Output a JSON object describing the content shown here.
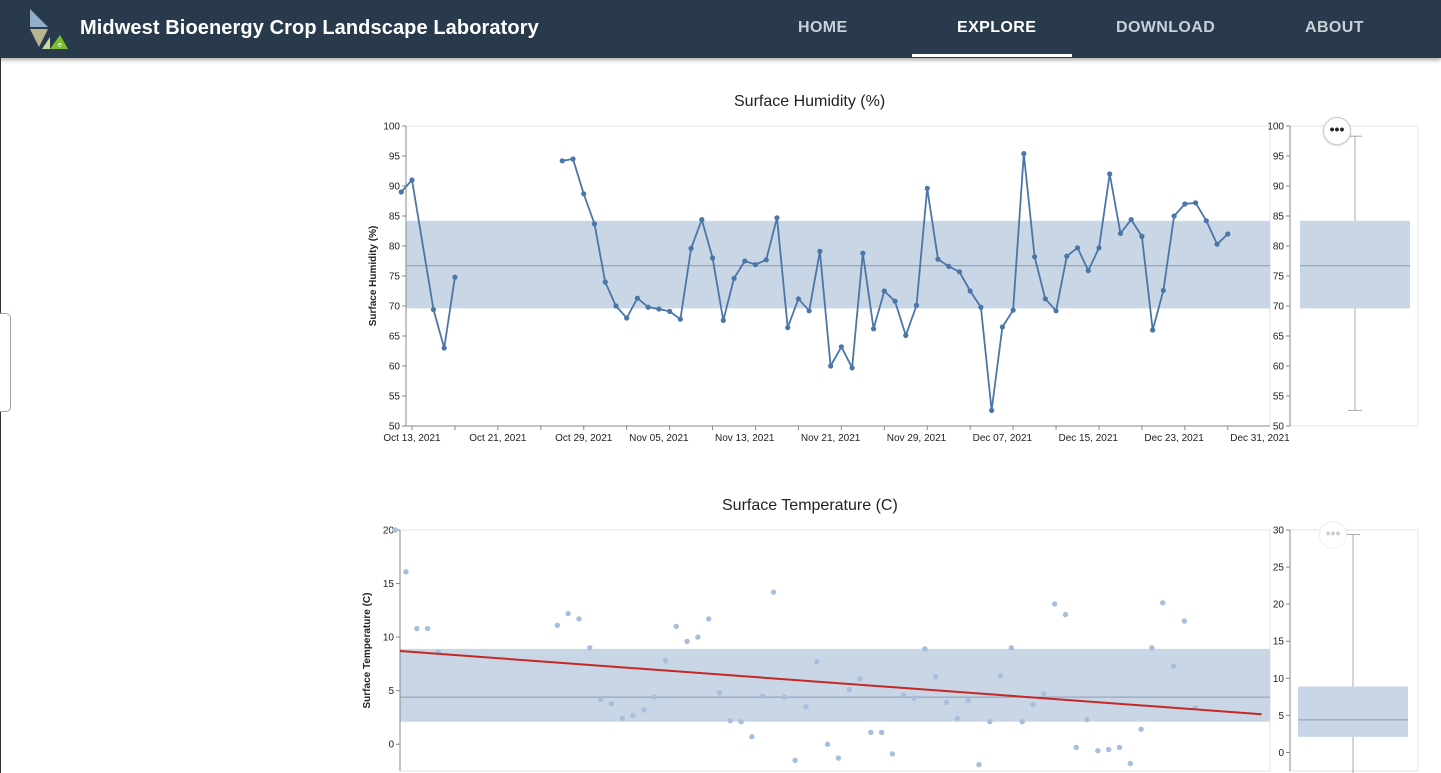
{
  "header": {
    "site_title": "Midwest Bioenergy Crop Landscape Laboratory",
    "logo_icon": "mbcll-leaf-logo-icon",
    "nav": [
      {
        "label": "HOME",
        "active": false
      },
      {
        "label": "EXPLORE",
        "active": true
      },
      {
        "label": "DOWNLOAD",
        "active": false
      },
      {
        "label": "ABOUT",
        "active": false
      }
    ]
  },
  "colors": {
    "header_bg": "#283a4b",
    "series": "#4a76a8",
    "band": "#c8d6e5",
    "median_line": "#8a9bb0",
    "trend": "#c62828"
  },
  "actions_icon": "ellipsis-icon",
  "actions_label": "•••",
  "chart_data": [
    {
      "type": "line",
      "title": "Surface Humidity (%)",
      "ylabel": "Surface Humidity (%)",
      "xlabel": "",
      "ylim": [
        50,
        100
      ],
      "xlim": [
        "2021-10-13",
        "2021-12-31"
      ],
      "yticks": [
        100,
        95,
        90,
        85,
        80,
        75,
        70,
        65,
        60,
        55,
        50
      ],
      "xticks": [
        "Oct 13, 2021",
        "Oct 21, 2021",
        "Oct 29, 2021",
        "Nov 05, 2021",
        "Nov 13, 2021",
        "Nov 21, 2021",
        "Nov 29, 2021",
        "Dec 07, 2021",
        "Dec 15, 2021",
        "Dec 23, 2021",
        "Dec 31, 2021"
      ],
      "grid": false,
      "band": {
        "low": 69.6,
        "high": 84.2
      },
      "median": 76.7,
      "series": [
        {
          "segments": [
            [
              [
                "2021-10-12",
                89.0
              ],
              [
                "2021-10-13",
                91.0
              ],
              [
                "2021-10-15",
                69.4
              ],
              [
                "2021-10-16",
                63.0
              ],
              [
                "2021-10-17",
                74.8
              ]
            ],
            [
              [
                "2021-10-27",
                94.2
              ],
              [
                "2021-10-28",
                94.5
              ],
              [
                "2021-10-29",
                88.7
              ],
              [
                "2021-10-30",
                83.7
              ],
              [
                "2021-10-31",
                74.0
              ],
              [
                "2021-11-01",
                70.0
              ],
              [
                "2021-11-02",
                68.0
              ],
              [
                "2021-11-03",
                71.3
              ],
              [
                "2021-11-04",
                69.8
              ],
              [
                "2021-11-05",
                69.5
              ],
              [
                "2021-11-06",
                69.1
              ],
              [
                "2021-11-07",
                67.8
              ],
              [
                "2021-11-08",
                79.6
              ],
              [
                "2021-11-09",
                84.4
              ],
              [
                "2021-11-10",
                78.0
              ],
              [
                "2021-11-11",
                67.6
              ],
              [
                "2021-11-12",
                74.6
              ],
              [
                "2021-11-13",
                77.5
              ],
              [
                "2021-11-14",
                76.9
              ],
              [
                "2021-11-15",
                77.7
              ],
              [
                "2021-11-16",
                84.7
              ],
              [
                "2021-11-17",
                66.4
              ],
              [
                "2021-11-18",
                71.2
              ],
              [
                "2021-11-19",
                69.2
              ],
              [
                "2021-11-20",
                79.1
              ],
              [
                "2021-11-21",
                60.0
              ],
              [
                "2021-11-22",
                63.2
              ],
              [
                "2021-11-23",
                59.7
              ],
              [
                "2021-11-24",
                78.8
              ],
              [
                "2021-11-25",
                66.2
              ],
              [
                "2021-11-26",
                72.5
              ],
              [
                "2021-11-27",
                70.8
              ],
              [
                "2021-11-28",
                65.1
              ],
              [
                "2021-11-29",
                70.1
              ],
              [
                "2021-11-30",
                89.6
              ],
              [
                "2021-12-01",
                77.8
              ],
              [
                "2021-12-02",
                76.6
              ],
              [
                "2021-12-03",
                75.7
              ],
              [
                "2021-12-04",
                72.5
              ],
              [
                "2021-12-05",
                69.8
              ],
              [
                "2021-12-06",
                52.6
              ],
              [
                "2021-12-07",
                66.5
              ],
              [
                "2021-12-08",
                69.3
              ],
              [
                "2021-12-09",
                95.4
              ],
              [
                "2021-12-10",
                78.2
              ],
              [
                "2021-12-11",
                71.2
              ],
              [
                "2021-12-12",
                69.2
              ],
              [
                "2021-12-13",
                78.3
              ],
              [
                "2021-12-14",
                79.7
              ],
              [
                "2021-12-15",
                75.9
              ],
              [
                "2021-12-16",
                79.7
              ],
              [
                "2021-12-17",
                92.0
              ],
              [
                "2021-12-18",
                82.1
              ],
              [
                "2021-12-19",
                84.4
              ],
              [
                "2021-12-20",
                81.6
              ],
              [
                "2021-12-21",
                66.0
              ],
              [
                "2021-12-22",
                72.6
              ],
              [
                "2021-12-23",
                85.0
              ],
              [
                "2021-12-24",
                87.0
              ],
              [
                "2021-12-25",
                87.2
              ],
              [
                "2021-12-26",
                84.2
              ],
              [
                "2021-12-27",
                80.3
              ],
              [
                "2021-12-28",
                82.0
              ]
            ]
          ]
        }
      ],
      "boxplot": {
        "ylim": [
          50,
          100
        ],
        "yticks": [
          100,
          95,
          90,
          85,
          80,
          75,
          70,
          65,
          60,
          55,
          50
        ],
        "min": 52.6,
        "q1": 69.6,
        "median": 76.7,
        "q3": 84.2,
        "max": 98.3
      }
    },
    {
      "type": "scatter",
      "title": "Surface Temperature (C)",
      "ylabel": "Surface Temperature (C)",
      "xlabel": "",
      "ylim": [
        -2.5,
        20
      ],
      "xlim": [
        "2021-10-13",
        "2021-12-31"
      ],
      "yticks": [
        20,
        15,
        10,
        5,
        0
      ],
      "grid": false,
      "band": {
        "low": 2.1,
        "high": 8.9
      },
      "median": 4.4,
      "trendline": {
        "start": [
          "2021-10-13",
          8.7
        ],
        "end": [
          "2021-12-28",
          2.8
        ]
      },
      "points": [
        [
          "2021-10-12",
          20.0
        ],
        [
          "2021-10-13",
          16.1
        ],
        [
          "2021-10-14",
          10.8
        ],
        [
          "2021-10-15",
          10.8
        ],
        [
          "2021-10-16",
          8.6
        ],
        [
          "2021-10-27",
          11.1
        ],
        [
          "2021-10-28",
          12.2
        ],
        [
          "2021-10-29",
          11.7
        ],
        [
          "2021-10-30",
          9.0
        ],
        [
          "2021-10-31",
          4.2
        ],
        [
          "2021-11-01",
          3.8
        ],
        [
          "2021-11-02",
          2.4
        ],
        [
          "2021-11-03",
          2.7
        ],
        [
          "2021-11-04",
          3.2
        ],
        [
          "2021-11-05",
          4.4
        ],
        [
          "2021-11-06",
          7.8
        ],
        [
          "2021-11-07",
          11.0
        ],
        [
          "2021-11-08",
          9.6
        ],
        [
          "2021-11-09",
          10.0
        ],
        [
          "2021-11-10",
          11.7
        ],
        [
          "2021-11-11",
          4.8
        ],
        [
          "2021-11-12",
          2.2
        ],
        [
          "2021-11-13",
          2.1
        ],
        [
          "2021-11-14",
          0.7
        ],
        [
          "2021-11-15",
          4.5
        ],
        [
          "2021-11-16",
          14.2
        ],
        [
          "2021-11-17",
          4.4
        ],
        [
          "2021-11-18",
          -1.5
        ],
        [
          "2021-11-19",
          3.5
        ],
        [
          "2021-11-20",
          7.7
        ],
        [
          "2021-11-21",
          0.0
        ],
        [
          "2021-11-22",
          -1.3
        ],
        [
          "2021-11-23",
          5.1
        ],
        [
          "2021-11-24",
          6.1
        ],
        [
          "2021-11-25",
          1.1
        ],
        [
          "2021-11-26",
          1.1
        ],
        [
          "2021-11-27",
          -0.9
        ],
        [
          "2021-11-28",
          4.6
        ],
        [
          "2021-11-29",
          4.3
        ],
        [
          "2021-11-30",
          8.9
        ],
        [
          "2021-12-01",
          6.3
        ],
        [
          "2021-12-02",
          3.9
        ],
        [
          "2021-12-03",
          2.4
        ],
        [
          "2021-12-04",
          4.1
        ],
        [
          "2021-12-05",
          -1.9
        ],
        [
          "2021-12-06",
          2.1
        ],
        [
          "2021-12-07",
          6.4
        ],
        [
          "2021-12-08",
          9.0
        ],
        [
          "2021-12-09",
          2.1
        ],
        [
          "2021-12-10",
          3.7
        ],
        [
          "2021-12-11",
          4.7
        ],
        [
          "2021-12-12",
          13.1
        ],
        [
          "2021-12-13",
          12.1
        ],
        [
          "2021-12-14",
          -0.3
        ],
        [
          "2021-12-15",
          2.3
        ],
        [
          "2021-12-16",
          -0.6
        ],
        [
          "2021-12-17",
          -0.5
        ],
        [
          "2021-12-18",
          -0.3
        ],
        [
          "2021-12-19",
          -1.8
        ],
        [
          "2021-12-20",
          1.4
        ],
        [
          "2021-12-21",
          9.0
        ],
        [
          "2021-12-22",
          13.2
        ],
        [
          "2021-12-23",
          7.3
        ],
        [
          "2021-12-24",
          11.5
        ],
        [
          "2021-12-25",
          3.4
        ]
      ],
      "boxplot": {
        "ylim": [
          -2.5,
          30
        ],
        "yticks": [
          30,
          25,
          20,
          15,
          10,
          5,
          0
        ],
        "q1": 2.1,
        "median": 4.4,
        "q3": 8.9,
        "max": 29.4
      }
    }
  ]
}
